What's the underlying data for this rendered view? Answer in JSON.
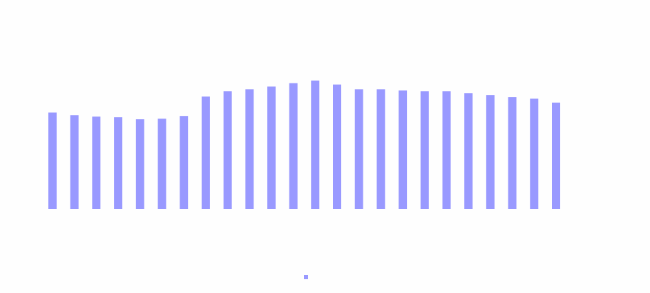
{
  "chart_data": {
    "type": "bar",
    "title": "",
    "series": [
      {
        "color": "#9999ff",
        "values": [
          72,
          70,
          69,
          68.5,
          67,
          67.5,
          69.5,
          84,
          88,
          89.5,
          91.5,
          94,
          96,
          93,
          89.5,
          89.5,
          88.5,
          88,
          88,
          86.5,
          85,
          83.5,
          82.5,
          79.5
        ]
      }
    ],
    "yticks": [
      "",
      "",
      "",
      "",
      ""
    ],
    "legend_position": "bottom",
    "grid": false
  }
}
